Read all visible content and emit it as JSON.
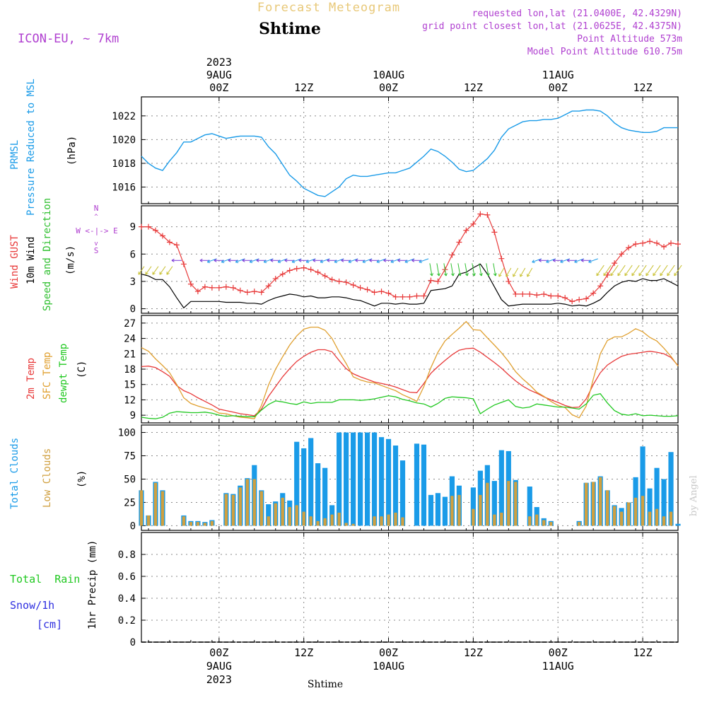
{
  "header": {
    "title": "Forecast Meteogram",
    "location": "Shtime",
    "model": "ICON-EU, ~ 7km",
    "requested": "requested lon,lat (21.0400E, 42.4329N)",
    "grid_point": "grid point closest lon,lat (21.0625E, 42.4375N)",
    "point_altitude": "Point Altitude 573m",
    "model_altitude": "Model Point Altitude 610.75m",
    "footer_location": "Shtime",
    "watermark": "by Angel"
  },
  "colors": {
    "title": "#e8c878",
    "location": "#000000",
    "info": "#b040d0",
    "pressure": "#1a9be8",
    "gust": "#e83a3a",
    "wind10m": "#000000",
    "arrows_green": "#30c030",
    "temp2m": "#e83a3a",
    "sfc_temp": "#e0a030",
    "dewpt": "#20c820",
    "total_clouds": "#1a9be8",
    "low_clouds": "#d0a040",
    "rain": "#20c820",
    "snow": "#3030e0",
    "precip_label": "#000000",
    "compass": "#b040d0",
    "grid": "#888888",
    "watermark": "#cccccc"
  },
  "axis": {
    "top_ticks": [
      "00Z",
      "12Z",
      "00Z",
      "12Z",
      "00Z",
      "12Z"
    ],
    "top_dates": [
      {
        "line1": "2023",
        "line2": "9AUG"
      },
      {
        "line1": "",
        "line2": "10AUG"
      },
      {
        "line1": "",
        "line2": "11AUG"
      }
    ],
    "bottom_ticks": [
      "00Z",
      "12Z",
      "00Z",
      "12Z",
      "00Z",
      "12Z"
    ],
    "bottom_dates": [
      {
        "line1": "9AUG",
        "line2": "2023"
      },
      {
        "line1": "10AUG",
        "line2": ""
      },
      {
        "line1": "11AUG",
        "line2": ""
      }
    ],
    "x_range_hours": [
      -11,
      65
    ],
    "major_tick_hours": [
      0,
      12,
      24,
      36,
      48,
      60
    ]
  },
  "panels": {
    "pressure": {
      "labels": [
        "PRMSL",
        "Pressure Reduced to MSL"
      ],
      "unit": "(hPa)",
      "yticks": [
        1016,
        1018,
        1020,
        1022
      ],
      "ylim": [
        1014.6,
        1023.6
      ]
    },
    "wind": {
      "labels": [
        "Wind GUST",
        "10m Wind",
        "Speed and Direction"
      ],
      "unit": "(m/s)",
      "yticks": [
        0,
        3,
        6,
        9
      ],
      "ylim": [
        -0.5,
        11.3
      ],
      "compass": {
        "n": "N",
        "s": "S",
        "w": "W",
        "e": "E",
        "line": "W <-|-> E",
        "vert": "N\n^\n|\nv\nS"
      }
    },
    "temp": {
      "labels": [
        "2m Temp",
        "SFC Temp",
        "dewpt Temp"
      ],
      "unit": "(C)",
      "yticks": [
        9,
        12,
        15,
        18,
        21,
        24,
        27
      ],
      "ylim": [
        7.5,
        28.5
      ]
    },
    "clouds": {
      "labels": [
        "Total Clouds",
        "Low Clouds"
      ],
      "unit": "(%)",
      "yticks": [
        0,
        25,
        50,
        75,
        100
      ],
      "ylim": [
        -5,
        108
      ]
    },
    "precip": {
      "labels": [
        "Total  Rain",
        "Snow/1h",
        "[cm]"
      ],
      "unit": "1hr Precip (mm)",
      "yticks": [
        "0",
        "0.2",
        "0.4",
        "0.6",
        "0.8"
      ],
      "ylim": [
        0,
        1.0
      ]
    }
  },
  "chart_data": [
    {
      "type": "line",
      "title": "PRMSL Pressure Reduced to MSL",
      "ylabel": "(hPa)",
      "x": [
        -11,
        -10,
        -9,
        -8,
        -7,
        -6,
        -5,
        -4,
        -3,
        -2,
        -1,
        0,
        1,
        2,
        3,
        4,
        5,
        6,
        7,
        8,
        9,
        10,
        11,
        12,
        13,
        14,
        15,
        16,
        17,
        18,
        19,
        20,
        21,
        22,
        23,
        24,
        25,
        26,
        27,
        28,
        29,
        30,
        31,
        32,
        33,
        34,
        35,
        36,
        37,
        38,
        39,
        40,
        41,
        42,
        43,
        44,
        45,
        46,
        47,
        48,
        49,
        50,
        51,
        52,
        53,
        54,
        55,
        56,
        57,
        58,
        59,
        60,
        61,
        62,
        63,
        64,
        65
      ],
      "series": [
        {
          "values": [
            1018.6,
            1018.0,
            1017.6,
            1017.4,
            1018.2,
            1018.9,
            1019.8,
            1019.8,
            1020.1,
            1020.4,
            1020.5,
            1020.3,
            1020.1,
            1020.2,
            1020.3,
            1020.3,
            1020.3,
            1020.2,
            1019.4,
            1018.8,
            1017.9,
            1017.0,
            1016.5,
            1015.9,
            1015.6,
            1015.3,
            1015.2,
            1015.6,
            1016.0,
            1016.7,
            1017.0,
            1016.9,
            1016.9,
            1017.0,
            1017.1,
            1017.2,
            1017.2,
            1017.4,
            1017.6,
            1018.1,
            1018.6,
            1019.2,
            1019.0,
            1018.6,
            1018.1,
            1017.5,
            1017.3,
            1017.4,
            1017.9,
            1018.4,
            1019.1,
            1020.2,
            1020.9,
            1021.2,
            1021.5,
            1021.6,
            1021.6,
            1021.7,
            1021.7,
            1021.8,
            1022.1,
            1022.4,
            1022.4,
            1022.5,
            1022.5,
            1022.4,
            1022.0,
            1021.4,
            1021.0,
            1020.8,
            1020.7,
            1020.6,
            1020.6,
            1020.7,
            1021.0,
            1021.0,
            1021.0
          ]
        }
      ]
    },
    {
      "type": "line",
      "title": "Wind GUST / 10m Wind Speed and Direction",
      "ylabel": "(m/s)",
      "x": [
        -11,
        -10,
        -9,
        -8,
        -7,
        -6,
        -5,
        -4,
        -3,
        -2,
        -1,
        0,
        1,
        2,
        3,
        4,
        5,
        6,
        7,
        8,
        9,
        10,
        11,
        12,
        13,
        14,
        15,
        16,
        17,
        18,
        19,
        20,
        21,
        22,
        23,
        24,
        25,
        26,
        27,
        28,
        29,
        30,
        31,
        32,
        33,
        34,
        35,
        36,
        37,
        38,
        39,
        40,
        41,
        42,
        43,
        44,
        45,
        46,
        47,
        48,
        49,
        50,
        51,
        52,
        53,
        54,
        55,
        56,
        57,
        58,
        59,
        60,
        61,
        62,
        63,
        64,
        65
      ],
      "series": [
        {
          "name": "Wind GUST",
          "values": [
            9.0,
            9.0,
            8.6,
            8.0,
            7.3,
            7.0,
            4.9,
            2.7,
            1.9,
            2.4,
            2.3,
            2.3,
            2.4,
            2.3,
            2.0,
            1.8,
            1.9,
            1.8,
            2.5,
            3.3,
            3.8,
            4.2,
            4.4,
            4.5,
            4.3,
            4.0,
            3.6,
            3.2,
            3.0,
            2.9,
            2.6,
            2.3,
            2.1,
            1.8,
            1.9,
            1.7,
            1.3,
            1.3,
            1.3,
            1.4,
            1.4,
            3.1,
            3.0,
            4.3,
            5.9,
            7.3,
            8.6,
            9.3,
            10.4,
            10.3,
            8.4,
            5.5,
            3.0,
            1.6,
            1.6,
            1.6,
            1.5,
            1.6,
            1.4,
            1.4,
            1.2,
            0.8,
            1.0,
            1.1,
            1.7,
            2.5,
            3.7,
            5.0,
            6.0,
            6.7,
            7.1,
            7.2,
            7.4,
            7.2,
            6.8,
            7.2,
            7.1
          ]
        },
        {
          "name": "10m Wind",
          "values": [
            3.8,
            3.6,
            3.2,
            3.2,
            2.4,
            1.2,
            0.1,
            0.8,
            0.8,
            0.8,
            0.8,
            0.8,
            0.7,
            0.7,
            0.7,
            0.6,
            0.6,
            0.5,
            0.9,
            1.2,
            1.4,
            1.6,
            1.5,
            1.3,
            1.4,
            1.2,
            1.2,
            1.3,
            1.3,
            1.2,
            1.0,
            0.9,
            0.6,
            0.3,
            0.6,
            0.6,
            0.5,
            0.6,
            0.5,
            0.5,
            0.6,
            2.0,
            2.1,
            2.2,
            2.5,
            3.8,
            4.0,
            4.5,
            4.9,
            3.8,
            2.4,
            1.0,
            0.3,
            0.4,
            0.5,
            0.5,
            0.5,
            0.5,
            0.5,
            0.6,
            0.5,
            0.3,
            0.4,
            0.3,
            0.6,
            1.0,
            1.8,
            2.5,
            2.9,
            3.1,
            3.0,
            3.3,
            3.1,
            3.1,
            3.3,
            2.9,
            2.5
          ]
        }
      ]
    },
    {
      "type": "line",
      "title": "2m Temp / SFC Temp / dewpt Temp",
      "ylabel": "(C)",
      "x": [
        -11,
        -10,
        -9,
        -8,
        -7,
        -6,
        -5,
        -4,
        -3,
        -2,
        -1,
        0,
        1,
        2,
        3,
        4,
        5,
        6,
        7,
        8,
        9,
        10,
        11,
        12,
        13,
        14,
        15,
        16,
        17,
        18,
        19,
        20,
        21,
        22,
        23,
        24,
        25,
        26,
        27,
        28,
        29,
        30,
        31,
        32,
        33,
        34,
        35,
        36,
        37,
        38,
        39,
        40,
        41,
        42,
        43,
        44,
        45,
        46,
        47,
        48,
        49,
        50,
        51,
        52,
        53,
        54,
        55,
        56,
        57,
        58,
        59,
        60,
        61,
        62,
        63,
        64,
        65
      ],
      "series": [
        {
          "name": "2m Temp",
          "values": [
            18.5,
            18.6,
            18.3,
            17.5,
            16.6,
            14.8,
            13.8,
            13.2,
            12.4,
            11.7,
            11.0,
            10.2,
            9.9,
            9.6,
            9.3,
            9.1,
            8.9,
            10.2,
            12.7,
            14.6,
            16.5,
            18.1,
            19.5,
            20.5,
            21.3,
            21.8,
            21.8,
            21.4,
            19.7,
            18.1,
            17.1,
            16.5,
            16.0,
            15.5,
            15.2,
            14.9,
            14.5,
            14.0,
            13.5,
            13.4,
            15.2,
            17.2,
            18.5,
            19.7,
            20.8,
            21.7,
            22.0,
            22.1,
            21.3,
            20.3,
            19.3,
            18.2,
            16.9,
            15.7,
            14.7,
            13.9,
            13.3,
            12.6,
            12.0,
            11.5,
            10.9,
            10.5,
            10.6,
            12.2,
            15.0,
            17.3,
            18.8,
            19.7,
            20.5,
            20.9,
            21.1,
            21.3,
            21.5,
            21.3,
            21.0,
            20.3,
            18.7
          ]
        },
        {
          "name": "SFC Temp",
          "values": [
            22.2,
            21.5,
            20.0,
            18.7,
            17.3,
            15.0,
            12.4,
            11.3,
            10.8,
            10.4,
            10.1,
            9.4,
            9.3,
            8.9,
            8.6,
            8.5,
            8.3,
            10.9,
            14.9,
            18.0,
            20.4,
            22.7,
            24.5,
            25.8,
            26.2,
            26.2,
            25.6,
            24.0,
            21.4,
            19.1,
            16.5,
            15.9,
            15.5,
            15.3,
            14.8,
            14.3,
            13.8,
            13.0,
            12.4,
            11.7,
            14.6,
            18.3,
            21.3,
            23.5,
            24.8,
            26.0,
            27.3,
            25.7,
            25.6,
            24.1,
            22.7,
            21.2,
            19.5,
            17.5,
            16.1,
            14.9,
            13.5,
            12.7,
            11.7,
            10.9,
            10.5,
            9.1,
            8.5,
            10.8,
            16.1,
            21.0,
            23.6,
            24.3,
            24.3,
            25.0,
            25.9,
            25.3,
            24.2,
            23.5,
            22.1,
            20.5,
            18.6
          ]
        },
        {
          "name": "dewpt Temp",
          "values": [
            8.6,
            8.4,
            8.3,
            8.6,
            9.4,
            9.7,
            9.6,
            9.5,
            9.5,
            9.6,
            9.4,
            9.0,
            8.8,
            8.9,
            8.8,
            8.7,
            8.7,
            10.0,
            11.1,
            11.8,
            11.6,
            11.3,
            11.1,
            11.6,
            11.3,
            11.5,
            11.5,
            11.5,
            12.0,
            12.0,
            12.0,
            11.9,
            12.0,
            12.2,
            12.5,
            12.8,
            12.6,
            12.1,
            11.8,
            11.4,
            11.2,
            10.6,
            11.3,
            12.3,
            12.6,
            12.5,
            12.4,
            12.2,
            9.3,
            10.2,
            11.0,
            11.5,
            12.0,
            10.7,
            10.4,
            10.6,
            11.2,
            11.0,
            10.8,
            10.6,
            10.6,
            10.4,
            10.2,
            11.2,
            12.9,
            13.2,
            11.4,
            9.9,
            9.2,
            9.0,
            9.3,
            8.9,
            9.0,
            8.9,
            8.8,
            8.8,
            8.9
          ]
        }
      ]
    },
    {
      "type": "bar",
      "title": "Total Clouds / Low Clouds",
      "ylabel": "(%)",
      "x": [
        -11,
        -10,
        -9,
        -8,
        -7,
        -6,
        -5,
        -4,
        -3,
        -2,
        -1,
        0,
        1,
        2,
        3,
        4,
        5,
        6,
        7,
        8,
        9,
        10,
        11,
        12,
        13,
        14,
        15,
        16,
        17,
        18,
        19,
        20,
        21,
        22,
        23,
        24,
        25,
        26,
        27,
        28,
        29,
        30,
        31,
        32,
        33,
        34,
        35,
        36,
        37,
        38,
        39,
        40,
        41,
        42,
        43,
        44,
        45,
        46,
        47,
        48,
        49,
        50,
        51,
        52,
        53,
        54,
        55,
        56,
        57,
        58,
        59,
        60,
        61,
        62,
        63,
        64,
        65
      ],
      "series": [
        {
          "name": "Total Clouds",
          "values": [
            38,
            11,
            47,
            38,
            0,
            0,
            11,
            5,
            5,
            4,
            6,
            0,
            35,
            34,
            43,
            51,
            65,
            38,
            23,
            26,
            35,
            27,
            90,
            83,
            94,
            67,
            62,
            22,
            100,
            100,
            100,
            100,
            100,
            100,
            95,
            93,
            86,
            70,
            0,
            88,
            87,
            33,
            35,
            31,
            53,
            43,
            0,
            41,
            59,
            65,
            48,
            81,
            80,
            49,
            0,
            42,
            20,
            8,
            5,
            0,
            0,
            0,
            5,
            46,
            47,
            53,
            38,
            22,
            19,
            25,
            52,
            85,
            40,
            62,
            50,
            79,
            2
          ]
        },
        {
          "name": "Low Clouds",
          "values": [
            38,
            11,
            46,
            37,
            0,
            0,
            10,
            4,
            4,
            3,
            5,
            0,
            34,
            33,
            41,
            50,
            50,
            37,
            10,
            24,
            30,
            20,
            22,
            15,
            10,
            5,
            8,
            12,
            14,
            3,
            2,
            0,
            0,
            10,
            10,
            12,
            14,
            9,
            0,
            0,
            0,
            0,
            0,
            0,
            32,
            33,
            0,
            18,
            33,
            46,
            12,
            14,
            48,
            47,
            0,
            10,
            12,
            6,
            4,
            0,
            0,
            0,
            4,
            46,
            47,
            52,
            38,
            21,
            15,
            25,
            30,
            32,
            15,
            18,
            10,
            15,
            0
          ]
        }
      ]
    },
    {
      "type": "line",
      "title": "1hr Precip",
      "ylabel": "1hr Precip (mm)",
      "x": [
        -11,
        65
      ],
      "series": [
        {
          "name": "Total Rain",
          "values": [
            0,
            0
          ]
        }
      ],
      "ylim": [
        0,
        1.0
      ]
    }
  ]
}
